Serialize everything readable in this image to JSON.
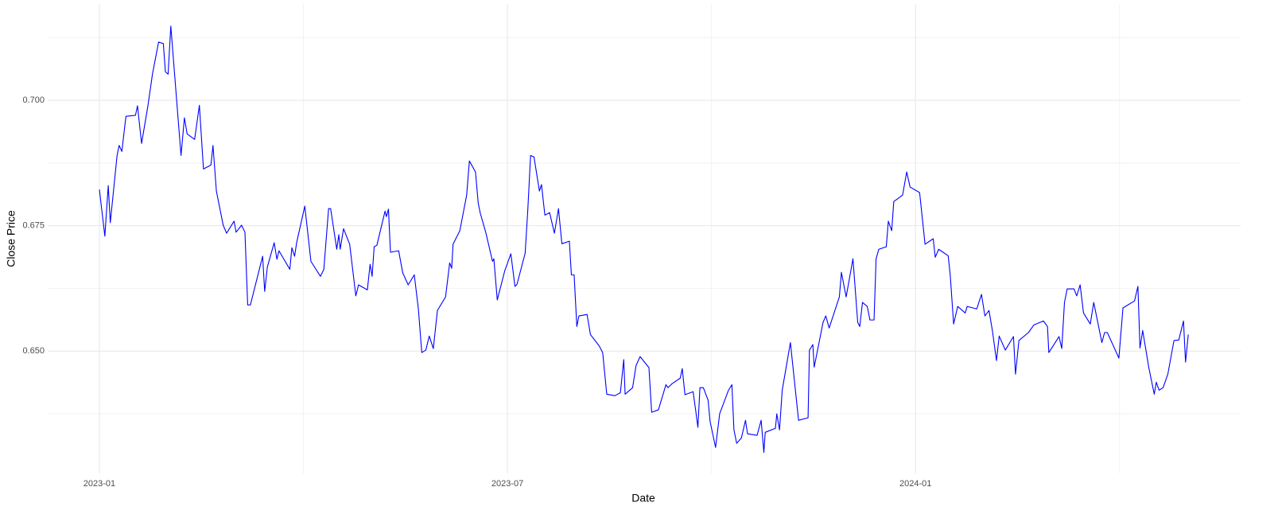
{
  "chart_data": {
    "type": "line",
    "x_label": "Date",
    "y_label": "Close Price",
    "x": [
      0,
      0.08,
      0.13,
      0.16,
      0.26,
      0.29,
      0.33,
      0.39,
      0.53,
      0.56,
      0.62,
      0.71,
      0.78,
      0.87,
      0.94,
      0.97,
      1.01,
      1.05,
      1.13,
      1.2,
      1.25,
      1.29,
      1.4,
      1.47,
      1.53,
      1.64,
      1.67,
      1.72,
      1.82,
      1.87,
      1.98,
      2.01,
      2.09,
      2.14,
      2.18,
      2.22,
      2.4,
      2.43,
      2.47,
      2.57,
      2.61,
      2.64,
      2.8,
      2.83,
      2.87,
      2.9,
      3.02,
      3.11,
      3.25,
      3.3,
      3.37,
      3.4,
      3.49,
      3.52,
      3.54,
      3.59,
      3.68,
      3.77,
      3.81,
      3.94,
      3.98,
      4.01,
      4.04,
      4.08,
      4.2,
      4.22,
      4.25,
      4.28,
      4.4,
      4.46,
      4.54,
      4.63,
      4.69,
      4.74,
      4.8,
      4.85,
      4.91,
      4.97,
      5.09,
      5.15,
      5.18,
      5.2,
      5.3,
      5.4,
      5.44,
      5.53,
      5.57,
      5.6,
      5.68,
      5.78,
      5.8,
      5.85,
      5.96,
      6.05,
      6.11,
      6.14,
      6.26,
      6.3,
      6.34,
      6.39,
      6.47,
      6.5,
      6.55,
      6.62,
      6.69,
      6.75,
      6.8,
      6.91,
      6.94,
      6.98,
      7.02,
      7.05,
      7.17,
      7.22,
      7.35,
      7.4,
      7.46,
      7.58,
      7.66,
      7.71,
      7.73,
      7.84,
      7.89,
      7.95,
      8.08,
      8.12,
      8.22,
      8.33,
      8.36,
      8.42,
      8.54,
      8.57,
      8.61,
      8.73,
      8.77,
      8.8,
      8.83,
      8.88,
      8.95,
      8.98,
      9.06,
      9.12,
      9.25,
      9.3,
      9.33,
      9.37,
      9.44,
      9.5,
      9.53,
      9.67,
      9.73,
      9.77,
      9.79,
      9.94,
      9.96,
      10,
      10.04,
      10.16,
      10.28,
      10.42,
      10.44,
      10.49,
      10.51,
      10.64,
      10.68,
      10.73,
      10.88,
      10.91,
      10.98,
      11.08,
      11.15,
      11.18,
      11.22,
      11.29,
      11.33,
      11.39,
      11.42,
      11.46,
      11.57,
      11.6,
      11.65,
      11.68,
      11.81,
      11.87,
      11.92,
      12.06,
      12.14,
      12.26,
      12.29,
      12.34,
      12.48,
      12.51,
      12.56,
      12.62,
      12.73,
      12.76,
      12.9,
      12.97,
      13.02,
      13.08,
      13.13,
      13.19,
      13.23,
      13.32,
      13.44,
      13.47,
      13.52,
      13.66,
      13.74,
      13.88,
      13.94,
      13.96,
      14.11,
      14.15,
      14.19,
      14.23,
      14.33,
      14.37,
      14.42,
      14.47,
      14.57,
      14.62,
      14.74,
      14.78,
      14.82,
      14.99,
      15.05,
      15.22,
      15.27,
      15.3,
      15.34,
      15.43,
      15.51,
      15.54,
      15.58,
      15.64,
      15.71,
      15.8,
      15.87,
      15.94,
      15.97,
      16.01
    ],
    "series": [
      {
        "color": "#0000ff",
        "values": [
          0.6822,
          0.6729,
          0.683,
          0.6756,
          0.689,
          0.691,
          0.6898,
          0.6968,
          0.697,
          0.6989,
          0.6914,
          0.6986,
          0.7052,
          0.7116,
          0.7113,
          0.7057,
          0.7052,
          0.7148,
          0.701,
          0.689,
          0.6965,
          0.6933,
          0.6922,
          0.699,
          0.6863,
          0.6871,
          0.691,
          0.6819,
          0.6751,
          0.6735,
          0.6759,
          0.6737,
          0.6751,
          0.6737,
          0.6592,
          0.6592,
          0.6689,
          0.6619,
          0.6668,
          0.6716,
          0.6683,
          0.67,
          0.6663,
          0.6706,
          0.6689,
          0.6716,
          0.6789,
          0.6679,
          0.6649,
          0.6663,
          0.6784,
          0.6784,
          0.6703,
          0.6732,
          0.6703,
          0.6744,
          0.6713,
          0.661,
          0.6632,
          0.6622,
          0.6673,
          0.6649,
          0.6708,
          0.6711,
          0.6779,
          0.6768,
          0.6783,
          0.6697,
          0.67,
          0.6656,
          0.6632,
          0.6652,
          0.6584,
          0.6497,
          0.6502,
          0.653,
          0.6505,
          0.6581,
          0.6608,
          0.6676,
          0.6665,
          0.6713,
          0.674,
          0.6811,
          0.6879,
          0.6857,
          0.6795,
          0.6775,
          0.6737,
          0.6679,
          0.6684,
          0.6602,
          0.666,
          0.6694,
          0.6629,
          0.6633,
          0.6695,
          0.6784,
          0.689,
          0.6887,
          0.6819,
          0.6832,
          0.6771,
          0.6776,
          0.6735,
          0.6784,
          0.6714,
          0.6719,
          0.6652,
          0.6652,
          0.6549,
          0.657,
          0.6573,
          0.6533,
          0.651,
          0.6497,
          0.6414,
          0.6411,
          0.6417,
          0.6483,
          0.6414,
          0.6427,
          0.6471,
          0.6489,
          0.6467,
          0.6378,
          0.6383,
          0.6433,
          0.6427,
          0.6435,
          0.6446,
          0.6465,
          0.6413,
          0.6419,
          0.6379,
          0.6348,
          0.6427,
          0.6427,
          0.6402,
          0.6359,
          0.6308,
          0.6375,
          0.6422,
          0.6433,
          0.6343,
          0.6316,
          0.6327,
          0.6362,
          0.6335,
          0.6332,
          0.6362,
          0.6298,
          0.6338,
          0.6346,
          0.6375,
          0.6343,
          0.6422,
          0.6517,
          0.6362,
          0.6367,
          0.6502,
          0.6513,
          0.6468,
          0.6557,
          0.657,
          0.6546,
          0.6608,
          0.6657,
          0.6608,
          0.6684,
          0.6557,
          0.6549,
          0.6597,
          0.6589,
          0.6562,
          0.6562,
          0.6684,
          0.6703,
          0.6708,
          0.6759,
          0.674,
          0.6798,
          0.6811,
          0.6857,
          0.6827,
          0.6816,
          0.6713,
          0.6724,
          0.6687,
          0.6703,
          0.669,
          0.6652,
          0.6554,
          0.6589,
          0.6576,
          0.6589,
          0.6584,
          0.6613,
          0.657,
          0.6581,
          0.6541,
          0.6481,
          0.653,
          0.6502,
          0.6529,
          0.6454,
          0.6521,
          0.6537,
          0.6552,
          0.656,
          0.6549,
          0.6497,
          0.6529,
          0.6505,
          0.6597,
          0.6624,
          0.6624,
          0.661,
          0.6632,
          0.6576,
          0.6554,
          0.6597,
          0.6517,
          0.6537,
          0.6537,
          0.6486,
          0.6586,
          0.66,
          0.6629,
          0.6506,
          0.6541,
          0.6467,
          0.6414,
          0.6438,
          0.6422,
          0.6427,
          0.6454,
          0.6521,
          0.6522,
          0.656,
          0.6478,
          0.6533
        ]
      }
    ],
    "xlim": [
      -0.76,
      16.78
    ],
    "xticks": [
      {
        "value": 0,
        "label": "2023-01"
      },
      {
        "value": 6,
        "label": "2023-07"
      },
      {
        "value": 12,
        "label": "2024-01"
      }
    ],
    "x_minor_grid": [
      3,
      9,
      15
    ],
    "ylim": [
      0.6256,
      0.7192
    ],
    "yticks": [
      {
        "value": 0.65,
        "label": "0.650"
      },
      0.675,
      {
        "value": 0.7,
        "label": "0.700"
      }
    ],
    "y_minor_grid": [
      0.6375,
      0.6625,
      0.6875,
      0.7125
    ],
    "grid": true
  }
}
